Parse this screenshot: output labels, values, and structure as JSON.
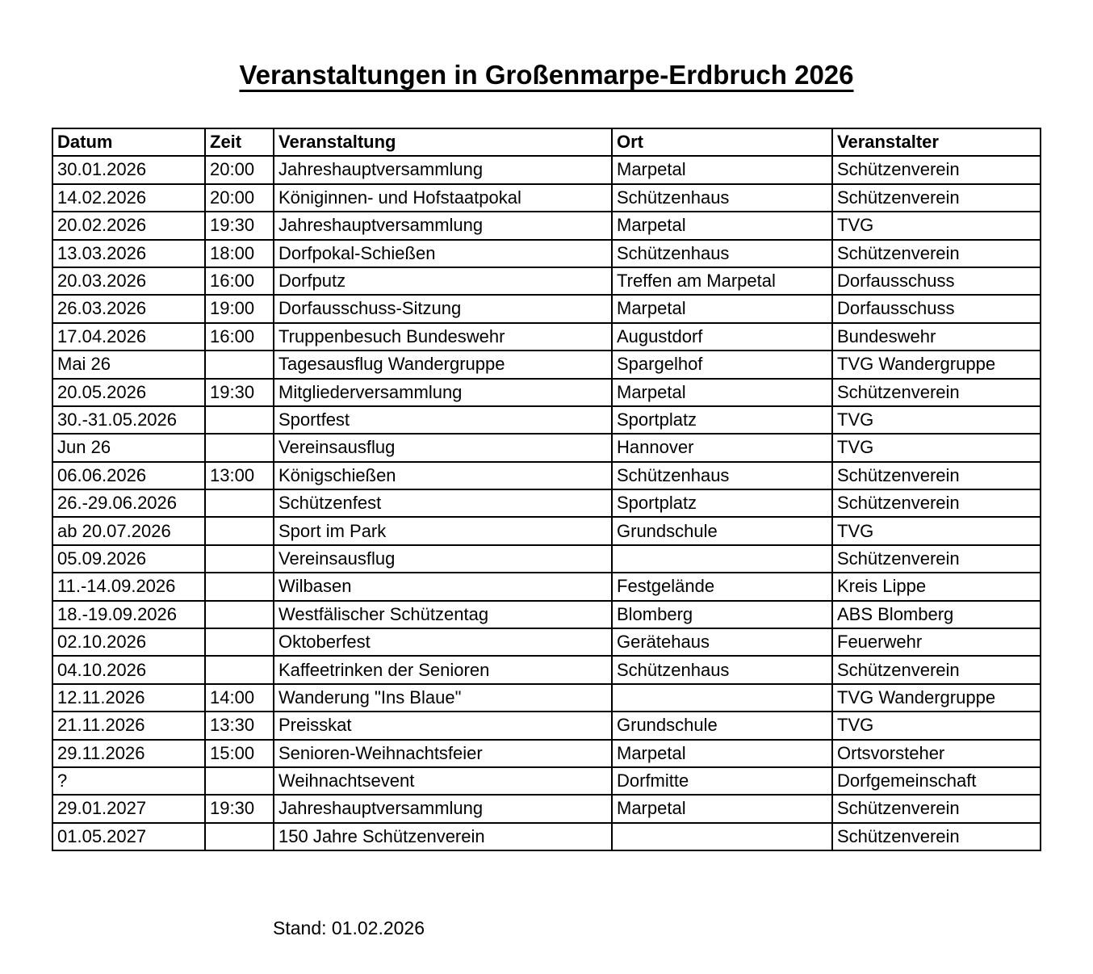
{
  "page": {
    "title": "Veranstaltungen in Großenmarpe-Erdbruch 2026",
    "footer": "Stand: 01.02.2026"
  },
  "colors": {
    "text": "#000000",
    "background": "#ffffff",
    "border": "#000000"
  },
  "table": {
    "columns": [
      "Datum",
      "Zeit",
      "Veranstaltung",
      "Ort",
      "Veranstalter"
    ],
    "rows": [
      [
        "30.01.2026",
        "20:00",
        "Jahreshauptversammlung",
        "Marpetal",
        "Schützenverein"
      ],
      [
        "14.02.2026",
        "20:00",
        "Königinnen- und Hofstaatpokal",
        "Schützenhaus",
        "Schützenverein"
      ],
      [
        "20.02.2026",
        "19:30",
        "Jahreshauptversammlung",
        "Marpetal",
        "TVG"
      ],
      [
        "13.03.2026",
        "18:00",
        "Dorfpokal-Schießen",
        "Schützenhaus",
        "Schützenverein"
      ],
      [
        "20.03.2026",
        "16:00",
        "Dorfputz",
        "Treffen am Marpetal",
        "Dorfausschuss"
      ],
      [
        "26.03.2026",
        "19:00",
        "Dorfausschuss-Sitzung",
        "Marpetal",
        "Dorfausschuss"
      ],
      [
        "17.04.2026",
        "16:00",
        "Truppenbesuch Bundeswehr",
        "Augustdorf",
        "Bundeswehr"
      ],
      [
        "Mai 26",
        "",
        "Tagesausflug Wandergruppe",
        "Spargelhof",
        "TVG Wandergruppe"
      ],
      [
        "20.05.2026",
        "19:30",
        "Mitgliederversammlung",
        "Marpetal",
        "Schützenverein"
      ],
      [
        "30.-31.05.2026",
        "",
        "Sportfest",
        "Sportplatz",
        "TVG"
      ],
      [
        "Jun 26",
        "",
        "Vereinsausflug",
        "Hannover",
        "TVG"
      ],
      [
        "06.06.2026",
        "13:00",
        "Königschießen",
        "Schützenhaus",
        "Schützenverein"
      ],
      [
        "26.-29.06.2026",
        "",
        "Schützenfest",
        "Sportplatz",
        "Schützenverein"
      ],
      [
        "ab 20.07.2026",
        "",
        "Sport im Park",
        "Grundschule",
        "TVG"
      ],
      [
        "05.09.2026",
        "",
        "Vereinsausflug",
        "",
        "Schützenverein"
      ],
      [
        "11.-14.09.2026",
        "",
        "Wilbasen",
        "Festgelände",
        "Kreis Lippe"
      ],
      [
        "18.-19.09.2026",
        "",
        "Westfälischer Schützentag",
        "Blomberg",
        "ABS Blomberg"
      ],
      [
        "02.10.2026",
        "",
        "Oktoberfest",
        "Gerätehaus",
        "Feuerwehr"
      ],
      [
        "04.10.2026",
        "",
        "Kaffeetrinken der Senioren",
        "Schützenhaus",
        "Schützenverein"
      ],
      [
        "12.11.2026",
        "14:00",
        "Wanderung \"Ins Blaue\"",
        "",
        "TVG Wandergruppe"
      ],
      [
        "21.11.2026",
        "13:30",
        "Preisskat",
        "Grundschule",
        "TVG"
      ],
      [
        "29.11.2026",
        "15:00",
        "Senioren-Weihnachtsfeier",
        "Marpetal",
        "Ortsvorsteher"
      ],
      [
        "?",
        "",
        "Weihnachtsevent",
        "Dorfmitte",
        "Dorfgemeinschaft"
      ],
      [
        "29.01.2027",
        "19:30",
        "Jahreshauptversammlung",
        "Marpetal",
        "Schützenverein"
      ],
      [
        "01.05.2027",
        "",
        "150 Jahre Schützenverein",
        "",
        "Schützenverein"
      ]
    ]
  }
}
